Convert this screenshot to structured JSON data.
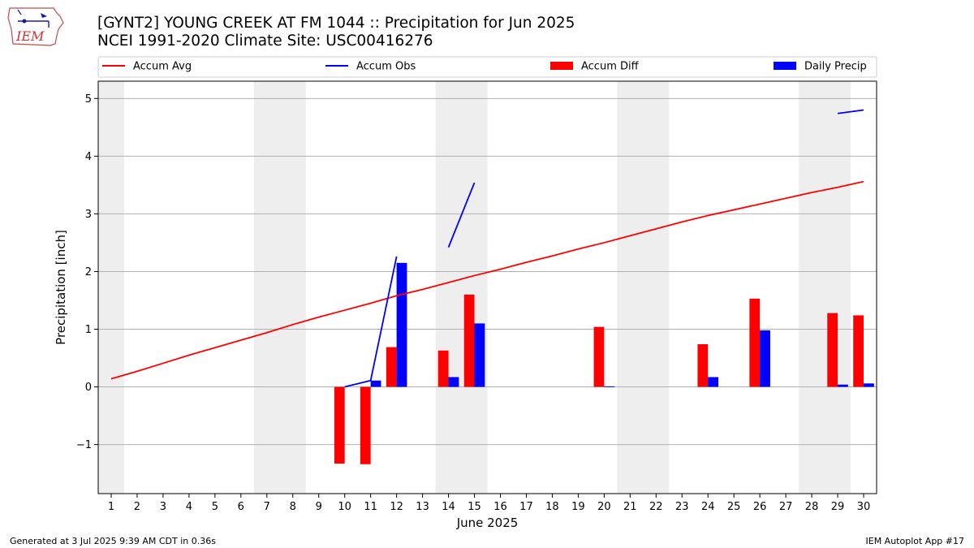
{
  "header": {
    "title": "[GYNT2] YOUNG CREEK AT FM 1044 :: Precipitation for Jun 2025",
    "subtitle": "NCEI 1991-2020 Climate Site: USC00416276",
    "logo_text": "IEM"
  },
  "footer": {
    "generated": "Generated at 3 Jul 2025 9:39 AM CDT in 0.36s",
    "app": "IEM Autoplot App #17"
  },
  "chart_data": {
    "type": "bar",
    "xlabel": "June 2025",
    "ylabel": "Precipitation [inch]",
    "xlim": [
      0.5,
      30.5
    ],
    "ylim": [
      -1.85,
      5.3
    ],
    "yticks": [
      -1,
      0,
      1,
      2,
      3,
      4,
      5
    ],
    "ytick_labels": [
      "−1",
      "0",
      "1",
      "2",
      "3",
      "4",
      "5"
    ],
    "days": [
      1,
      2,
      3,
      4,
      5,
      6,
      7,
      8,
      9,
      10,
      11,
      12,
      13,
      14,
      15,
      16,
      17,
      18,
      19,
      20,
      21,
      22,
      23,
      24,
      25,
      26,
      27,
      28,
      29,
      30
    ],
    "weekend_shading": [
      [
        0.5,
        1.5
      ],
      [
        6.5,
        8.5
      ],
      [
        13.5,
        15.5
      ],
      [
        20.5,
        22.5
      ],
      [
        27.5,
        29.5
      ]
    ],
    "grid": "y",
    "legend_position": "top",
    "legend": [
      {
        "label": "Accum Avg",
        "kind": "line",
        "color": "#ff0000"
      },
      {
        "label": "Accum Obs",
        "kind": "line",
        "color": "#0000ff"
      },
      {
        "label": "Accum Diff",
        "kind": "bar",
        "color": "#ff0000"
      },
      {
        "label": "Daily Precip",
        "kind": "bar",
        "color": "#0000ff"
      }
    ],
    "series": [
      {
        "name": "Accum Avg",
        "type": "line",
        "color": "#ff0000",
        "values": [
          0.14,
          0.27,
          0.41,
          0.55,
          0.68,
          0.81,
          0.94,
          1.08,
          1.21,
          1.33,
          1.45,
          1.58,
          1.69,
          1.81,
          1.93,
          2.04,
          2.16,
          2.27,
          2.39,
          2.5,
          2.62,
          2.74,
          2.86,
          2.97,
          3.07,
          3.17,
          3.27,
          3.37,
          3.46,
          3.56
        ]
      },
      {
        "name": "Accum Obs",
        "type": "line",
        "color": "#0000ff",
        "values": [
          null,
          null,
          null,
          null,
          null,
          null,
          null,
          null,
          null,
          0.0,
          0.11,
          2.26,
          null,
          2.42,
          3.54,
          null,
          null,
          null,
          null,
          null,
          null,
          null,
          null,
          null,
          null,
          null,
          null,
          null,
          4.74,
          4.8
        ]
      },
      {
        "name": "Accum Diff",
        "type": "bar",
        "color": "#ff0000",
        "values": [
          null,
          null,
          null,
          null,
          null,
          null,
          null,
          null,
          null,
          -1.33,
          -1.34,
          0.69,
          null,
          0.63,
          1.6,
          null,
          null,
          null,
          null,
          1.04,
          null,
          null,
          null,
          0.74,
          null,
          1.53,
          null,
          null,
          1.28,
          1.24
        ]
      },
      {
        "name": "Daily Precip",
        "type": "bar",
        "color": "#0000ff",
        "values": [
          null,
          null,
          null,
          null,
          null,
          null,
          null,
          null,
          null,
          null,
          0.11,
          2.15,
          null,
          0.17,
          1.1,
          null,
          null,
          null,
          null,
          0.01,
          null,
          null,
          null,
          0.17,
          null,
          0.98,
          null,
          null,
          0.04,
          0.06
        ]
      }
    ]
  }
}
